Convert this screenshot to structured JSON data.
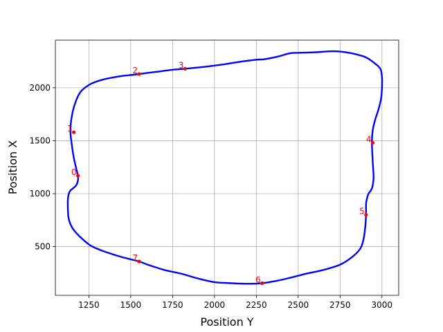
{
  "chart_data": {
    "type": "line",
    "title": "",
    "xlabel": "Position Y",
    "ylabel": "Position X",
    "xlim": [
      1050,
      3100
    ],
    "ylim": [
      40,
      2450
    ],
    "xticks": [
      1250,
      1500,
      1750,
      2000,
      2250,
      2500,
      2750,
      3000
    ],
    "yticks": [
      500,
      1000,
      1500,
      2000
    ],
    "grid": true,
    "line_color": "#0000ff",
    "marker_color": "#ff0000",
    "series": [
      {
        "x": [
          1185,
          1160,
          1145,
          1140,
          1145,
          1165,
          1200,
          1260,
          1340,
          1440,
          1500,
          1550,
          1650,
          1750,
          1825,
          1950,
          2050,
          2150,
          2250,
          2300,
          2380,
          2450,
          2500,
          2600,
          2700,
          2760,
          2820,
          2900,
          2950,
          2990,
          3000,
          3000,
          2995,
          2980,
          2960,
          2945,
          2940,
          2945,
          2950,
          2940,
          2920,
          2910,
          2905,
          2905,
          2900,
          2890,
          2870,
          2820,
          2750,
          2650,
          2550,
          2450,
          2380,
          2285,
          2200,
          2100,
          2000,
          1900,
          1800,
          1700,
          1600,
          1550,
          1450,
          1350,
          1300,
          1260,
          1220,
          1180,
          1150,
          1130,
          1125,
          1125,
          1135,
          1155,
          1175,
          1185,
          1185
        ],
        "y": [
          1170,
          1340,
          1500,
          1580,
          1700,
          1840,
          1960,
          2035,
          2080,
          2110,
          2120,
          2130,
          2150,
          2170,
          2180,
          2200,
          2220,
          2245,
          2265,
          2270,
          2295,
          2325,
          2330,
          2335,
          2345,
          2340,
          2325,
          2290,
          2240,
          2180,
          2100,
          2000,
          1900,
          1800,
          1700,
          1600,
          1480,
          1300,
          1150,
          1050,
          1000,
          950,
          900,
          800,
          680,
          570,
          480,
          400,
          330,
          280,
          245,
          205,
          180,
          155,
          150,
          155,
          165,
          200,
          245,
          280,
          330,
          360,
          400,
          450,
          480,
          510,
          560,
          620,
          680,
          760,
          850,
          950,
          1020,
          1050,
          1080,
          1130,
          1170
        ]
      }
    ],
    "markers": [
      {
        "label": "0",
        "x": 1185,
        "y": 1170
      },
      {
        "label": "1",
        "x": 1160,
        "y": 1580
      },
      {
        "label": "2",
        "x": 1550,
        "y": 2130
      },
      {
        "label": "3",
        "x": 1825,
        "y": 2180
      },
      {
        "label": "4",
        "x": 2945,
        "y": 1480
      },
      {
        "label": "5",
        "x": 2905,
        "y": 800
      },
      {
        "label": "6",
        "x": 2285,
        "y": 155
      },
      {
        "label": "7",
        "x": 1550,
        "y": 360
      }
    ]
  }
}
